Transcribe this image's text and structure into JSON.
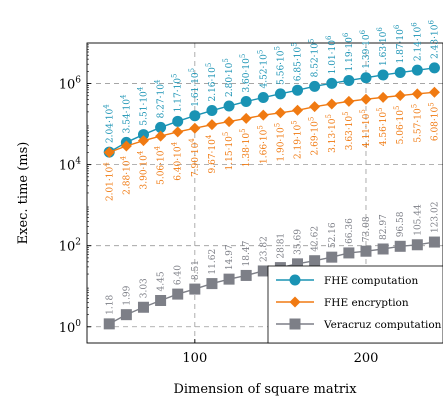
{
  "chart_data": {
    "type": "scatter",
    "title": "",
    "xlabel": "Dimension of square matrix",
    "ylabel": "Exec. time (ms)",
    "x_scale": "linear",
    "y_scale": "log",
    "xlim": [
      37,
      245
    ],
    "ylim": [
      0.398,
      10000000
    ],
    "x_ticks": [
      100,
      200
    ],
    "x_tick_labels": [
      "100",
      "200"
    ],
    "y_ticks": [
      1,
      100,
      10000,
      1000000
    ],
    "y_tick_labels": [
      {
        "base": "10",
        "exp": "0"
      },
      {
        "base": "10",
        "exp": "2"
      },
      {
        "base": "10",
        "exp": "4"
      },
      {
        "base": "10",
        "exp": "6"
      }
    ],
    "grid": "dashed at major ticks",
    "legend_position": "lower-right",
    "x": [
      50,
      60,
      70,
      80,
      90,
      100,
      110,
      120,
      130,
      140,
      150,
      160,
      170,
      180,
      190,
      200,
      210,
      220,
      230,
      240
    ],
    "series": [
      {
        "name": "FHE computation",
        "color": "#1a93b4",
        "marker": "circle",
        "values": [
          20400,
          35400,
          55100,
          82700,
          117000,
          161000,
          216000,
          280000,
          360000,
          452000,
          556000,
          685000,
          852000,
          1010000,
          1190000,
          1390000,
          1630000,
          1870000,
          2140000,
          2430000
        ],
        "labels": [
          {
            "m": "2.04",
            "e": "4"
          },
          {
            "m": "3.54",
            "e": "4"
          },
          {
            "m": "5.51",
            "e": "4"
          },
          {
            "m": "8.27",
            "e": "4"
          },
          {
            "m": "1.17",
            "e": "5"
          },
          {
            "m": "1.61",
            "e": "5"
          },
          {
            "m": "2.16",
            "e": "5"
          },
          {
            "m": "2.80",
            "e": "5"
          },
          {
            "m": "3.60",
            "e": "5"
          },
          {
            "m": "4.52",
            "e": "5"
          },
          {
            "m": "5.56",
            "e": "5"
          },
          {
            "m": "6.85",
            "e": "5"
          },
          {
            "m": "8.52",
            "e": "5"
          },
          {
            "m": "1.01",
            "e": "6"
          },
          {
            "m": "1.19",
            "e": "6"
          },
          {
            "m": "1.39",
            "e": "6"
          },
          {
            "m": "1.63",
            "e": "6"
          },
          {
            "m": "1.87",
            "e": "6"
          },
          {
            "m": "2.14",
            "e": "6"
          },
          {
            "m": "2.43",
            "e": "6"
          }
        ]
      },
      {
        "name": "FHE encryption",
        "color": "#f07a12",
        "marker": "diamond",
        "values": [
          20100,
          28800,
          39000,
          50600,
          64000,
          79000,
          96700,
          115000,
          138000,
          166000,
          190000,
          219000,
          269000,
          313000,
          363000,
          411000,
          456000,
          506000,
          557000,
          608000
        ],
        "labels": [
          {
            "m": "2.01",
            "e": "4"
          },
          {
            "m": "2.88",
            "e": "4"
          },
          {
            "m": "3.90",
            "e": "4"
          },
          {
            "m": "5.06",
            "e": "4"
          },
          {
            "m": "6.40",
            "e": "4"
          },
          {
            "m": "7.90",
            "e": "4"
          },
          {
            "m": "9.67",
            "e": "4"
          },
          {
            "m": "1.15",
            "e": "5"
          },
          {
            "m": "1.38",
            "e": "5"
          },
          {
            "m": "1.66",
            "e": "5"
          },
          {
            "m": "1.90",
            "e": "5"
          },
          {
            "m": "2.19",
            "e": "5"
          },
          {
            "m": "2.69",
            "e": "5"
          },
          {
            "m": "3.13",
            "e": "5"
          },
          {
            "m": "3.63",
            "e": "5"
          },
          {
            "m": "4.11",
            "e": "5"
          },
          {
            "m": "4.56",
            "e": "5"
          },
          {
            "m": "5.06",
            "e": "5"
          },
          {
            "m": "5.57",
            "e": "5"
          },
          {
            "m": "6.08",
            "e": "5"
          }
        ]
      },
      {
        "name": "Veracruz computation",
        "color": "#7d7f87",
        "marker": "square",
        "values": [
          1.18,
          1.99,
          3.03,
          4.45,
          6.4,
          8.51,
          11.62,
          14.97,
          18.47,
          23.82,
          28.81,
          35.69,
          42.62,
          52.16,
          66.36,
          73.08,
          82.97,
          96.58,
          105.44,
          123.02
        ],
        "labels": [
          {
            "m": "1.18"
          },
          {
            "m": "1.99"
          },
          {
            "m": "3.03"
          },
          {
            "m": "4.45"
          },
          {
            "m": "6.40"
          },
          {
            "m": "8.51"
          },
          {
            "m": "11.62"
          },
          {
            "m": "14.97"
          },
          {
            "m": "18.47"
          },
          {
            "m": "23.82"
          },
          {
            "m": "28.81"
          },
          {
            "m": "35.69"
          },
          {
            "m": "42.62"
          },
          {
            "m": "52.16"
          },
          {
            "m": "66.36"
          },
          {
            "m": "73.08"
          },
          {
            "m": "82.97"
          },
          {
            "m": "96.58"
          },
          {
            "m": "105.44"
          },
          {
            "m": "123.02"
          }
        ]
      }
    ]
  }
}
